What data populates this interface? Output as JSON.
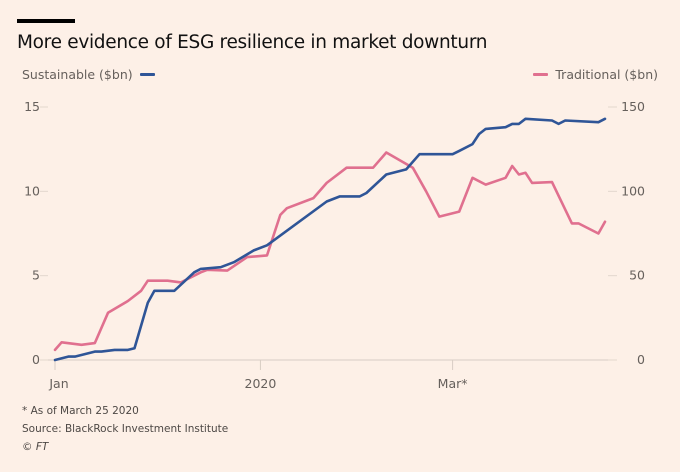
{
  "title": "More evidence of ESG resilience in market downturn",
  "legend": {
    "left": {
      "label": "Sustainable ($bn)",
      "color": "#2f5597"
    },
    "right": {
      "label": "Traditional ($bn)",
      "color": "#e0708f"
    }
  },
  "footnotes": {
    "note": "* As of March 25 2020",
    "source": "Source: BlackRock Investment Institute",
    "copyright": "© FT"
  },
  "chart_data": {
    "type": "line",
    "title": "More evidence of ESG resilience in market downturn",
    "x_ticks": [
      {
        "date": "2020-01-01",
        "label": "Jan"
      },
      {
        "date": "2020-02-01",
        "label": "2020"
      },
      {
        "date": "2020-03-01",
        "label": "Mar*"
      }
    ],
    "xlim": [
      "2020-01-01",
      "2020-03-24"
    ],
    "y_left": {
      "lim": [
        0,
        15
      ],
      "ticks": [
        "0",
        "5",
        "10",
        "15"
      ]
    },
    "y_right": {
      "lim": [
        0,
        150
      ],
      "ticks": [
        "0",
        "50",
        "100",
        "150"
      ]
    },
    "grid": false,
    "series": [
      {
        "name": "Sustainable ($bn)",
        "axis": "left",
        "color": "#2f5597",
        "points": [
          [
            "2020-01-01",
            0
          ],
          [
            "2020-01-03",
            0.2
          ],
          [
            "2020-01-04",
            0.2
          ],
          [
            "2020-01-07",
            0.5
          ],
          [
            "2020-01-08",
            0.5
          ],
          [
            "2020-01-10",
            0.6
          ],
          [
            "2020-01-12",
            0.6
          ],
          [
            "2020-01-13",
            0.7
          ],
          [
            "2020-01-15",
            3.4
          ],
          [
            "2020-01-16",
            4.1
          ],
          [
            "2020-01-19",
            4.1
          ],
          [
            "2020-01-22",
            5.2
          ],
          [
            "2020-01-23",
            5.4
          ],
          [
            "2020-01-26",
            5.5
          ],
          [
            "2020-01-28",
            5.8
          ],
          [
            "2020-01-31",
            6.5
          ],
          [
            "2020-02-02",
            6.8
          ],
          [
            "2020-02-11",
            9.4
          ],
          [
            "2020-02-13",
            9.7
          ],
          [
            "2020-02-16",
            9.7
          ],
          [
            "2020-02-17",
            9.9
          ],
          [
            "2020-02-20",
            11.0
          ],
          [
            "2020-02-23",
            11.3
          ],
          [
            "2020-02-25",
            12.2
          ],
          [
            "2020-03-01",
            12.2
          ],
          [
            "2020-03-02",
            12.4
          ],
          [
            "2020-03-04",
            12.8
          ],
          [
            "2020-03-05",
            13.4
          ],
          [
            "2020-03-06",
            13.7
          ],
          [
            "2020-03-09",
            13.8
          ],
          [
            "2020-03-10",
            14.0
          ],
          [
            "2020-03-11",
            14.0
          ],
          [
            "2020-03-12",
            14.3
          ],
          [
            "2020-03-16",
            14.2
          ],
          [
            "2020-03-17",
            14.0
          ],
          [
            "2020-03-18",
            14.2
          ],
          [
            "2020-03-23",
            14.1
          ],
          [
            "2020-03-24",
            14.3
          ]
        ]
      },
      {
        "name": "Traditional ($bn)",
        "axis": "right",
        "color": "#e0708f",
        "points": [
          [
            "2020-01-01",
            6
          ],
          [
            "2020-01-02",
            10.5
          ],
          [
            "2020-01-05",
            9
          ],
          [
            "2020-01-07",
            10
          ],
          [
            "2020-01-09",
            28
          ],
          [
            "2020-01-12",
            35
          ],
          [
            "2020-01-14",
            41
          ],
          [
            "2020-01-15",
            47
          ],
          [
            "2020-01-18",
            47
          ],
          [
            "2020-01-20",
            46
          ],
          [
            "2020-01-23",
            52
          ],
          [
            "2020-01-24",
            53.5
          ],
          [
            "2020-01-27",
            53
          ],
          [
            "2020-01-30",
            61
          ],
          [
            "2020-02-02",
            62
          ],
          [
            "2020-02-04",
            86
          ],
          [
            "2020-02-05",
            90
          ],
          [
            "2020-02-09",
            96
          ],
          [
            "2020-02-11",
            105
          ],
          [
            "2020-02-14",
            114
          ],
          [
            "2020-02-18",
            114
          ],
          [
            "2020-02-20",
            123
          ],
          [
            "2020-02-24",
            114
          ],
          [
            "2020-02-26",
            100
          ],
          [
            "2020-02-28",
            85
          ],
          [
            "2020-03-02",
            88
          ],
          [
            "2020-03-04",
            108
          ],
          [
            "2020-03-06",
            104
          ],
          [
            "2020-03-09",
            108
          ],
          [
            "2020-03-10",
            115
          ],
          [
            "2020-03-11",
            110
          ],
          [
            "2020-03-12",
            111
          ],
          [
            "2020-03-13",
            105
          ],
          [
            "2020-03-16",
            105.5
          ],
          [
            "2020-03-19",
            81
          ],
          [
            "2020-03-20",
            81
          ],
          [
            "2020-03-23",
            75
          ],
          [
            "2020-03-24",
            82
          ]
        ]
      }
    ]
  }
}
